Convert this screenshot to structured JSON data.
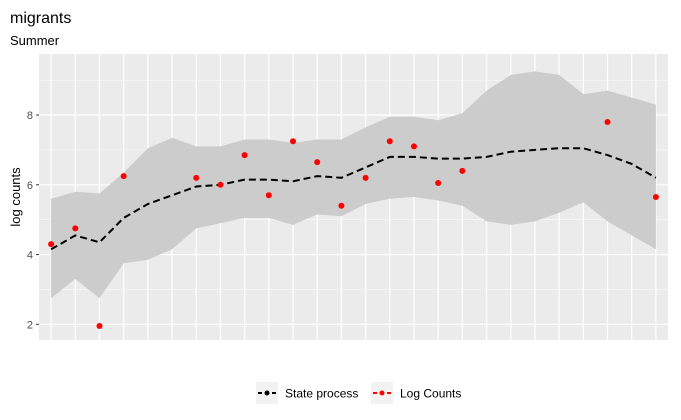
{
  "chart_data": {
    "type": "line",
    "title": "migrants",
    "subtitle": "Summer",
    "xlabel": "",
    "ylabel": "log counts",
    "x": [
      1,
      2,
      3,
      4,
      5,
      6,
      7,
      8,
      9,
      10,
      11,
      12,
      13,
      14,
      15,
      16,
      17,
      18,
      19,
      20,
      21,
      22,
      23,
      24,
      25,
      26
    ],
    "xlim": [
      0.5,
      26.5
    ],
    "ylim": [
      1.55,
      9.75
    ],
    "yticks": [
      2,
      4,
      6,
      8
    ],
    "grid": true,
    "legend_position": "bottom",
    "series": [
      {
        "name": "State process",
        "style": "dashed line",
        "color": "#000000",
        "values": [
          4.15,
          4.55,
          4.35,
          5.05,
          5.45,
          5.7,
          5.95,
          6.0,
          6.15,
          6.15,
          6.1,
          6.25,
          6.2,
          6.5,
          6.8,
          6.8,
          6.75,
          6.75,
          6.8,
          6.95,
          7.0,
          7.05,
          7.05,
          6.85,
          6.6,
          6.2
        ],
        "lower": [
          2.75,
          3.3,
          2.75,
          3.75,
          3.85,
          4.15,
          4.75,
          4.9,
          5.05,
          5.05,
          4.85,
          5.15,
          5.1,
          5.45,
          5.6,
          5.65,
          5.55,
          5.4,
          4.95,
          4.85,
          4.95,
          5.2,
          5.5,
          4.95,
          4.55,
          4.15
        ],
        "upper": [
          5.6,
          5.8,
          5.75,
          6.35,
          7.05,
          7.35,
          7.1,
          7.1,
          7.3,
          7.3,
          7.2,
          7.3,
          7.3,
          7.65,
          7.95,
          7.95,
          7.85,
          8.05,
          8.7,
          9.15,
          9.25,
          9.15,
          8.6,
          8.7,
          8.5,
          8.3
        ],
        "band_color": "#cccccc"
      },
      {
        "name": "Log Counts",
        "style": "points",
        "color": "#ff0000",
        "points": [
          {
            "x": 1,
            "y": 4.3
          },
          {
            "x": 2,
            "y": 4.75
          },
          {
            "x": 3,
            "y": 1.95
          },
          {
            "x": 4,
            "y": 6.25
          },
          {
            "x": 7,
            "y": 6.2
          },
          {
            "x": 8,
            "y": 6.0
          },
          {
            "x": 9,
            "y": 6.85
          },
          {
            "x": 10,
            "y": 5.7
          },
          {
            "x": 11,
            "y": 7.25
          },
          {
            "x": 12,
            "y": 6.65
          },
          {
            "x": 13,
            "y": 5.4
          },
          {
            "x": 14,
            "y": 6.2
          },
          {
            "x": 15,
            "y": 7.25
          },
          {
            "x": 16,
            "y": 7.1
          },
          {
            "x": 17,
            "y": 6.05
          },
          {
            "x": 18,
            "y": 6.4
          },
          {
            "x": 24,
            "y": 7.8
          },
          {
            "x": 26,
            "y": 5.65
          }
        ]
      }
    ],
    "colors": {
      "panel_background": "#ebebeb",
      "grid_line": "#ffffff",
      "legend_key_background": "#f2f2f2"
    }
  }
}
